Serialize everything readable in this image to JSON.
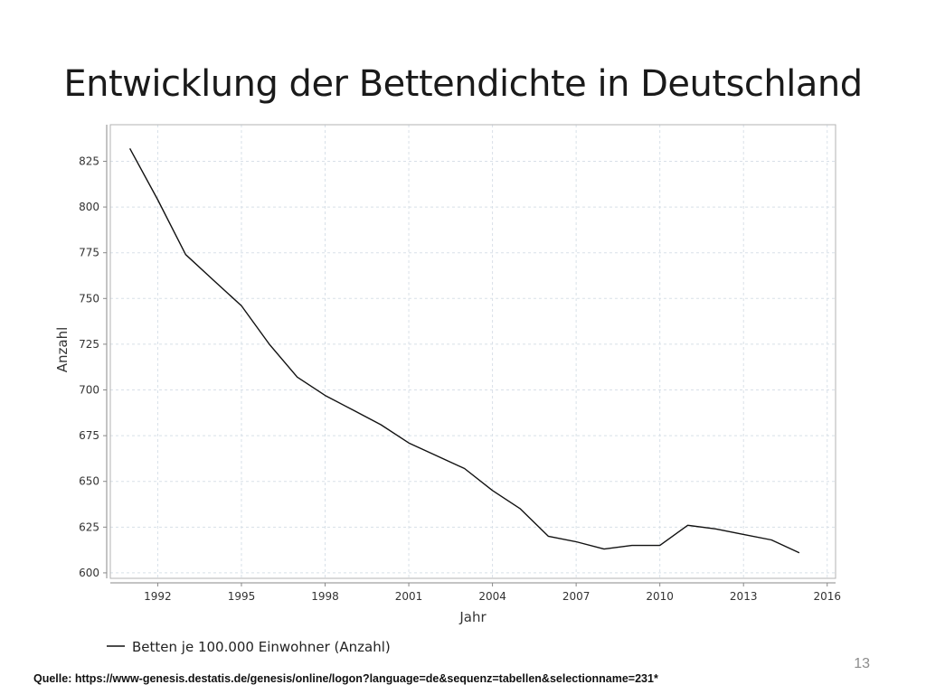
{
  "slide": {
    "title": "Entwicklung der Bettendichte in Deutschland",
    "page_number": "13",
    "source": "Quelle: https://www-genesis.destatis.de/genesis/online/logon?language=de&sequenz=tabellen&selectionname=231*"
  },
  "chart_data": {
    "type": "line",
    "title": "",
    "xlabel": "Jahr",
    "ylabel": "Anzahl",
    "xlim": [
      1990.3,
      2016.3
    ],
    "ylim": [
      597,
      845
    ],
    "x_ticks": [
      1992,
      1995,
      1998,
      2001,
      2004,
      2007,
      2010,
      2013,
      2016
    ],
    "y_ticks": [
      600,
      625,
      650,
      675,
      700,
      725,
      750,
      775,
      800,
      825
    ],
    "grid": true,
    "legend_position": "bottom-left",
    "series": [
      {
        "name": "Betten je 100.000 Einwohner (Anzahl)",
        "color": "#111111",
        "x": [
          1991,
          1992,
          1993,
          1994,
          1995,
          1996,
          1997,
          1998,
          1999,
          2000,
          2001,
          2002,
          2003,
          2004,
          2005,
          2006,
          2007,
          2008,
          2009,
          2010,
          2011,
          2012,
          2013,
          2014,
          2015
        ],
        "y": [
          832,
          804,
          774,
          760,
          746,
          725,
          707,
          697,
          689,
          681,
          671,
          664,
          657,
          645,
          635,
          620,
          617,
          613,
          615,
          615,
          626,
          624,
          621,
          618,
          611
        ]
      }
    ]
  }
}
